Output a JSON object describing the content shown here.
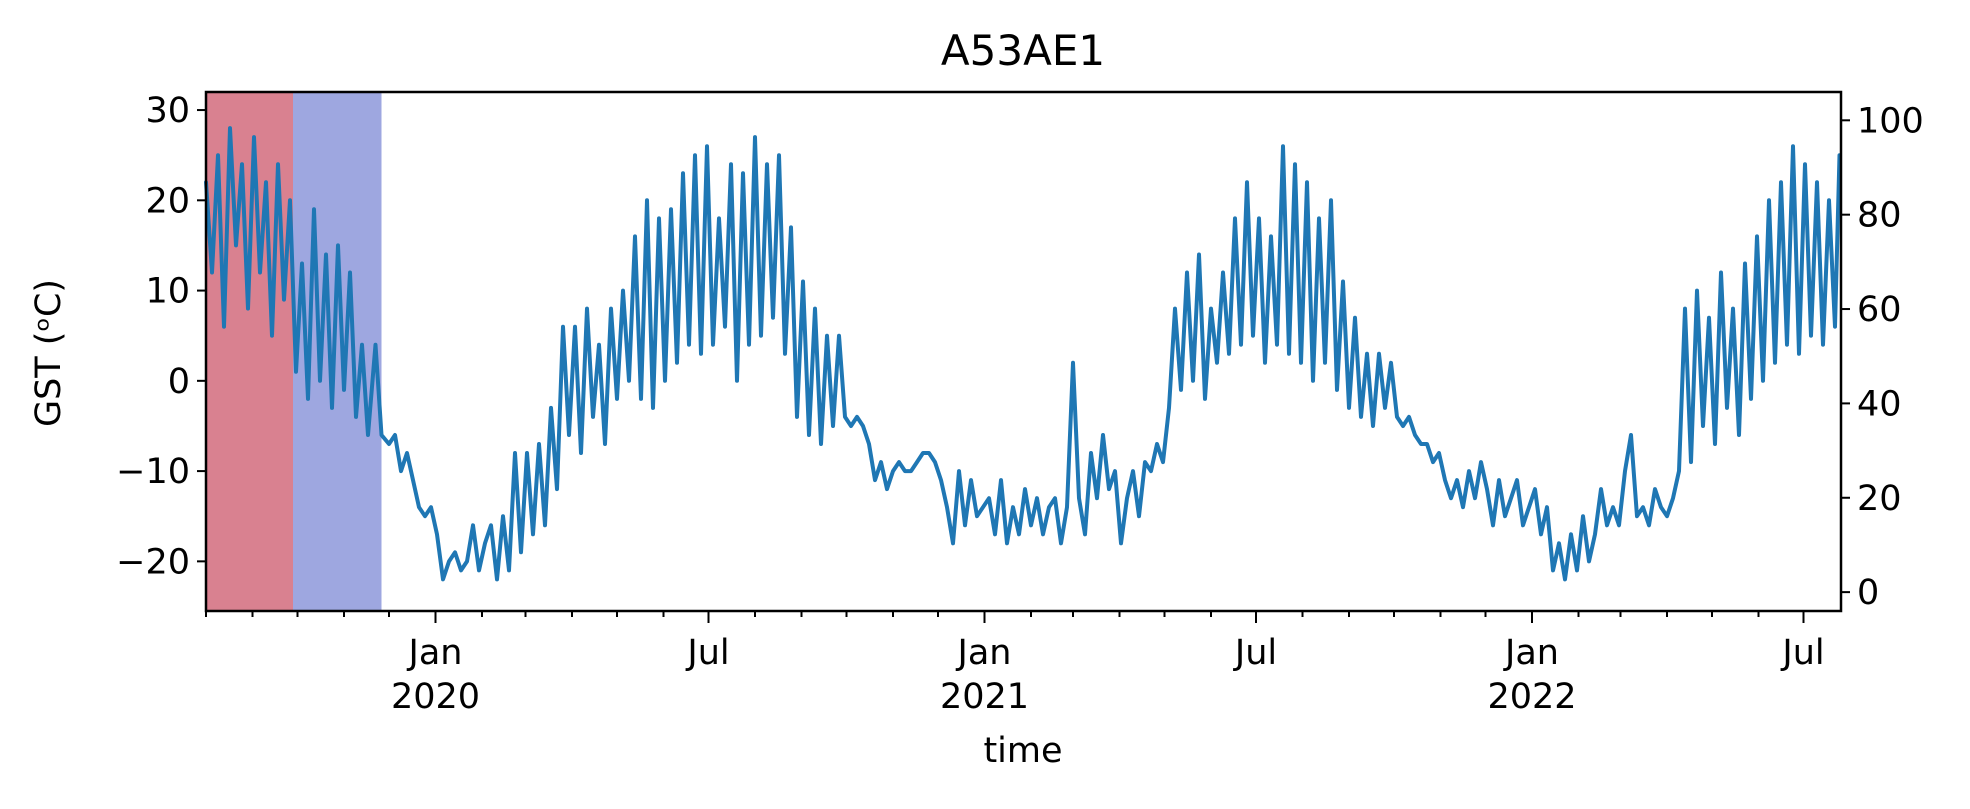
{
  "chart_data": {
    "type": "line",
    "title": "A53AE1",
    "xlabel": "time",
    "ylabel": "GST (ᵒC)",
    "xlim": [
      "2019-08-01",
      "2022-07-26"
    ],
    "ylim": [
      -25.5,
      32
    ],
    "y2lim": [
      -4,
      106
    ],
    "y_ticks": [
      -20,
      -10,
      0,
      10,
      20,
      30
    ],
    "y_tick_labels": [
      "−20",
      "−10",
      "0",
      "10",
      "20",
      "30"
    ],
    "y2_ticks": [
      0,
      20,
      40,
      60,
      80,
      100
    ],
    "y2_tick_labels": [
      "0",
      "20",
      "40",
      "60",
      "80",
      "100"
    ],
    "x_major_ticks": [
      {
        "date": "2020-01-01",
        "label": "Jan",
        "year": "2020"
      },
      {
        "date": "2020-07-01",
        "label": "Jul",
        "year": ""
      },
      {
        "date": "2021-01-01",
        "label": "Jan",
        "year": "2021"
      },
      {
        "date": "2021-07-01",
        "label": "Jul",
        "year": ""
      },
      {
        "date": "2022-01-01",
        "label": "Jan",
        "year": "2022"
      },
      {
        "date": "2022-07-01",
        "label": "Jul",
        "year": ""
      }
    ],
    "shaded_regions": [
      {
        "start": "2019-08-01",
        "end": "2019-09-28",
        "color": "#d98190"
      },
      {
        "start": "2019-09-28",
        "end": "2019-11-26",
        "color": "#9ea7e0"
      }
    ],
    "grid": false,
    "series": [
      {
        "color": "#1f77b4",
        "points": [
          [
            "2019-08-01",
            22
          ],
          [
            "2019-08-05",
            12
          ],
          [
            "2019-08-09",
            25
          ],
          [
            "2019-08-13",
            6
          ],
          [
            "2019-08-17",
            28
          ],
          [
            "2019-08-21",
            15
          ],
          [
            "2019-08-25",
            24
          ],
          [
            "2019-08-29",
            8
          ],
          [
            "2019-09-02",
            27
          ],
          [
            "2019-09-06",
            12
          ],
          [
            "2019-09-10",
            22
          ],
          [
            "2019-09-14",
            5
          ],
          [
            "2019-09-18",
            24
          ],
          [
            "2019-09-22",
            9
          ],
          [
            "2019-09-26",
            20
          ],
          [
            "2019-09-30",
            1
          ],
          [
            "2019-10-04",
            13
          ],
          [
            "2019-10-08",
            -2
          ],
          [
            "2019-10-12",
            19
          ],
          [
            "2019-10-16",
            0
          ],
          [
            "2019-10-20",
            14
          ],
          [
            "2019-10-24",
            -3
          ],
          [
            "2019-10-28",
            15
          ],
          [
            "2019-11-01",
            -1
          ],
          [
            "2019-11-05",
            12
          ],
          [
            "2019-11-09",
            -4
          ],
          [
            "2019-11-13",
            4
          ],
          [
            "2019-11-17",
            -6
          ],
          [
            "2019-11-22",
            4
          ],
          [
            "2019-11-26",
            -6
          ],
          [
            "2019-12-01",
            -7
          ],
          [
            "2019-12-05",
            -6
          ],
          [
            "2019-12-09",
            -10
          ],
          [
            "2019-12-13",
            -8
          ],
          [
            "2019-12-17",
            -11
          ],
          [
            "2019-12-21",
            -14
          ],
          [
            "2019-12-25",
            -15
          ],
          [
            "2019-12-29",
            -14
          ],
          [
            "2020-01-02",
            -17
          ],
          [
            "2020-01-06",
            -22
          ],
          [
            "2020-01-10",
            -20
          ],
          [
            "2020-01-14",
            -19
          ],
          [
            "2020-01-18",
            -21
          ],
          [
            "2020-01-22",
            -20
          ],
          [
            "2020-01-26",
            -16
          ],
          [
            "2020-01-30",
            -21
          ],
          [
            "2020-02-03",
            -18
          ],
          [
            "2020-02-07",
            -16
          ],
          [
            "2020-02-11",
            -22
          ],
          [
            "2020-02-15",
            -15
          ],
          [
            "2020-02-19",
            -21
          ],
          [
            "2020-02-23",
            -8
          ],
          [
            "2020-02-27",
            -19
          ],
          [
            "2020-03-02",
            -8
          ],
          [
            "2020-03-06",
            -17
          ],
          [
            "2020-03-10",
            -7
          ],
          [
            "2020-03-14",
            -16
          ],
          [
            "2020-03-18",
            -3
          ],
          [
            "2020-03-22",
            -12
          ],
          [
            "2020-03-26",
            6
          ],
          [
            "2020-03-30",
            -6
          ],
          [
            "2020-04-03",
            6
          ],
          [
            "2020-04-07",
            -8
          ],
          [
            "2020-04-11",
            8
          ],
          [
            "2020-04-15",
            -4
          ],
          [
            "2020-04-19",
            4
          ],
          [
            "2020-04-23",
            -7
          ],
          [
            "2020-04-27",
            8
          ],
          [
            "2020-05-01",
            -2
          ],
          [
            "2020-05-05",
            10
          ],
          [
            "2020-05-09",
            0
          ],
          [
            "2020-05-13",
            16
          ],
          [
            "2020-05-17",
            -2
          ],
          [
            "2020-05-21",
            20
          ],
          [
            "2020-05-25",
            -3
          ],
          [
            "2020-05-29",
            18
          ],
          [
            "2020-06-02",
            0
          ],
          [
            "2020-06-06",
            19
          ],
          [
            "2020-06-10",
            2
          ],
          [
            "2020-06-14",
            23
          ],
          [
            "2020-06-18",
            4
          ],
          [
            "2020-06-22",
            25
          ],
          [
            "2020-06-26",
            3
          ],
          [
            "2020-06-30",
            26
          ],
          [
            "2020-07-04",
            4
          ],
          [
            "2020-07-08",
            18
          ],
          [
            "2020-07-12",
            6
          ],
          [
            "2020-07-16",
            24
          ],
          [
            "2020-07-20",
            0
          ],
          [
            "2020-07-24",
            23
          ],
          [
            "2020-07-28",
            4
          ],
          [
            "2020-08-01",
            27
          ],
          [
            "2020-08-05",
            5
          ],
          [
            "2020-08-09",
            24
          ],
          [
            "2020-08-13",
            7
          ],
          [
            "2020-08-17",
            25
          ],
          [
            "2020-08-21",
            3
          ],
          [
            "2020-08-25",
            17
          ],
          [
            "2020-08-29",
            -4
          ],
          [
            "2020-09-02",
            11
          ],
          [
            "2020-09-06",
            -6
          ],
          [
            "2020-09-10",
            8
          ],
          [
            "2020-09-14",
            -7
          ],
          [
            "2020-09-18",
            5
          ],
          [
            "2020-09-22",
            -5
          ],
          [
            "2020-09-26",
            5
          ],
          [
            "2020-09-30",
            -4
          ],
          [
            "2020-10-04",
            -5
          ],
          [
            "2020-10-08",
            -4
          ],
          [
            "2020-10-12",
            -5
          ],
          [
            "2020-10-16",
            -7
          ],
          [
            "2020-10-20",
            -11
          ],
          [
            "2020-10-24",
            -9
          ],
          [
            "2020-10-28",
            -12
          ],
          [
            "2020-11-01",
            -10
          ],
          [
            "2020-11-05",
            -9
          ],
          [
            "2020-11-09",
            -10
          ],
          [
            "2020-11-13",
            -10
          ],
          [
            "2020-11-17",
            -9
          ],
          [
            "2020-11-21",
            -8
          ],
          [
            "2020-11-25",
            -8
          ],
          [
            "2020-11-29",
            -9
          ],
          [
            "2020-12-03",
            -11
          ],
          [
            "2020-12-07",
            -14
          ],
          [
            "2020-12-11",
            -18
          ],
          [
            "2020-12-15",
            -10
          ],
          [
            "2020-12-19",
            -16
          ],
          [
            "2020-12-23",
            -11
          ],
          [
            "2020-12-27",
            -15
          ],
          [
            "2020-12-31",
            -14
          ],
          [
            "2021-01-04",
            -13
          ],
          [
            "2021-01-08",
            -17
          ],
          [
            "2021-01-12",
            -11
          ],
          [
            "2021-01-16",
            -18
          ],
          [
            "2021-01-20",
            -14
          ],
          [
            "2021-01-24",
            -17
          ],
          [
            "2021-01-28",
            -12
          ],
          [
            "2021-02-01",
            -16
          ],
          [
            "2021-02-05",
            -13
          ],
          [
            "2021-02-09",
            -17
          ],
          [
            "2021-02-13",
            -14
          ],
          [
            "2021-02-17",
            -13
          ],
          [
            "2021-02-21",
            -18
          ],
          [
            "2021-02-25",
            -14
          ],
          [
            "2021-03-01",
            2
          ],
          [
            "2021-03-05",
            -13
          ],
          [
            "2021-03-09",
            -17
          ],
          [
            "2021-03-13",
            -8
          ],
          [
            "2021-03-17",
            -13
          ],
          [
            "2021-03-21",
            -6
          ],
          [
            "2021-03-25",
            -12
          ],
          [
            "2021-03-29",
            -10
          ],
          [
            "2021-04-02",
            -18
          ],
          [
            "2021-04-06",
            -13
          ],
          [
            "2021-04-10",
            -10
          ],
          [
            "2021-04-14",
            -15
          ],
          [
            "2021-04-18",
            -9
          ],
          [
            "2021-04-22",
            -10
          ],
          [
            "2021-04-26",
            -7
          ],
          [
            "2021-04-30",
            -9
          ],
          [
            "2021-05-04",
            -3
          ],
          [
            "2021-05-08",
            8
          ],
          [
            "2021-05-12",
            -1
          ],
          [
            "2021-05-16",
            12
          ],
          [
            "2021-05-20",
            0
          ],
          [
            "2021-05-24",
            14
          ],
          [
            "2021-05-28",
            -2
          ],
          [
            "2021-06-01",
            8
          ],
          [
            "2021-06-05",
            2
          ],
          [
            "2021-06-09",
            12
          ],
          [
            "2021-06-13",
            3
          ],
          [
            "2021-06-17",
            18
          ],
          [
            "2021-06-21",
            4
          ],
          [
            "2021-06-25",
            22
          ],
          [
            "2021-06-29",
            5
          ],
          [
            "2021-07-03",
            18
          ],
          [
            "2021-07-07",
            2
          ],
          [
            "2021-07-11",
            16
          ],
          [
            "2021-07-15",
            4
          ],
          [
            "2021-07-19",
            26
          ],
          [
            "2021-07-23",
            3
          ],
          [
            "2021-07-27",
            24
          ],
          [
            "2021-07-31",
            2
          ],
          [
            "2021-08-04",
            22
          ],
          [
            "2021-08-08",
            0
          ],
          [
            "2021-08-12",
            18
          ],
          [
            "2021-08-16",
            2
          ],
          [
            "2021-08-20",
            20
          ],
          [
            "2021-08-24",
            -1
          ],
          [
            "2021-08-28",
            11
          ],
          [
            "2021-09-01",
            -3
          ],
          [
            "2021-09-05",
            7
          ],
          [
            "2021-09-09",
            -4
          ],
          [
            "2021-09-13",
            3
          ],
          [
            "2021-09-17",
            -5
          ],
          [
            "2021-09-21",
            3
          ],
          [
            "2021-09-25",
            -3
          ],
          [
            "2021-09-29",
            2
          ],
          [
            "2021-10-03",
            -4
          ],
          [
            "2021-10-07",
            -5
          ],
          [
            "2021-10-11",
            -4
          ],
          [
            "2021-10-15",
            -6
          ],
          [
            "2021-10-19",
            -7
          ],
          [
            "2021-10-23",
            -7
          ],
          [
            "2021-10-27",
            -9
          ],
          [
            "2021-10-31",
            -8
          ],
          [
            "2021-11-04",
            -11
          ],
          [
            "2021-11-08",
            -13
          ],
          [
            "2021-11-12",
            -11
          ],
          [
            "2021-11-16",
            -14
          ],
          [
            "2021-11-20",
            -10
          ],
          [
            "2021-11-24",
            -13
          ],
          [
            "2021-11-28",
            -9
          ],
          [
            "2021-12-02",
            -12
          ],
          [
            "2021-12-06",
            -16
          ],
          [
            "2021-12-10",
            -11
          ],
          [
            "2021-12-14",
            -15
          ],
          [
            "2021-12-18",
            -13
          ],
          [
            "2021-12-22",
            -11
          ],
          [
            "2021-12-26",
            -16
          ],
          [
            "2021-12-30",
            -14
          ],
          [
            "2022-01-03",
            -12
          ],
          [
            "2022-01-07",
            -17
          ],
          [
            "2022-01-11",
            -14
          ],
          [
            "2022-01-15",
            -21
          ],
          [
            "2022-01-19",
            -18
          ],
          [
            "2022-01-23",
            -22
          ],
          [
            "2022-01-27",
            -17
          ],
          [
            "2022-01-31",
            -21
          ],
          [
            "2022-02-04",
            -15
          ],
          [
            "2022-02-08",
            -20
          ],
          [
            "2022-02-12",
            -17
          ],
          [
            "2022-02-16",
            -12
          ],
          [
            "2022-02-20",
            -16
          ],
          [
            "2022-02-24",
            -14
          ],
          [
            "2022-02-28",
            -16
          ],
          [
            "2022-03-04",
            -10
          ],
          [
            "2022-03-08",
            -6
          ],
          [
            "2022-03-12",
            -15
          ],
          [
            "2022-03-16",
            -14
          ],
          [
            "2022-03-20",
            -16
          ],
          [
            "2022-03-24",
            -12
          ],
          [
            "2022-03-28",
            -14
          ],
          [
            "2022-04-01",
            -15
          ],
          [
            "2022-04-05",
            -13
          ],
          [
            "2022-04-09",
            -10
          ],
          [
            "2022-04-13",
            8
          ],
          [
            "2022-04-17",
            -9
          ],
          [
            "2022-04-21",
            10
          ],
          [
            "2022-04-25",
            -5
          ],
          [
            "2022-04-29",
            7
          ],
          [
            "2022-05-03",
            -7
          ],
          [
            "2022-05-07",
            12
          ],
          [
            "2022-05-11",
            -3
          ],
          [
            "2022-05-15",
            8
          ],
          [
            "2022-05-19",
            -6
          ],
          [
            "2022-05-23",
            13
          ],
          [
            "2022-05-27",
            -2
          ],
          [
            "2022-05-31",
            16
          ],
          [
            "2022-06-04",
            0
          ],
          [
            "2022-06-08",
            20
          ],
          [
            "2022-06-12",
            2
          ],
          [
            "2022-06-16",
            22
          ],
          [
            "2022-06-20",
            4
          ],
          [
            "2022-06-24",
            26
          ],
          [
            "2022-06-28",
            3
          ],
          [
            "2022-07-02",
            24
          ],
          [
            "2022-07-06",
            5
          ],
          [
            "2022-07-10",
            22
          ],
          [
            "2022-07-14",
            4
          ],
          [
            "2022-07-18",
            20
          ],
          [
            "2022-07-22",
            6
          ],
          [
            "2022-07-25",
            25
          ]
        ]
      }
    ]
  }
}
